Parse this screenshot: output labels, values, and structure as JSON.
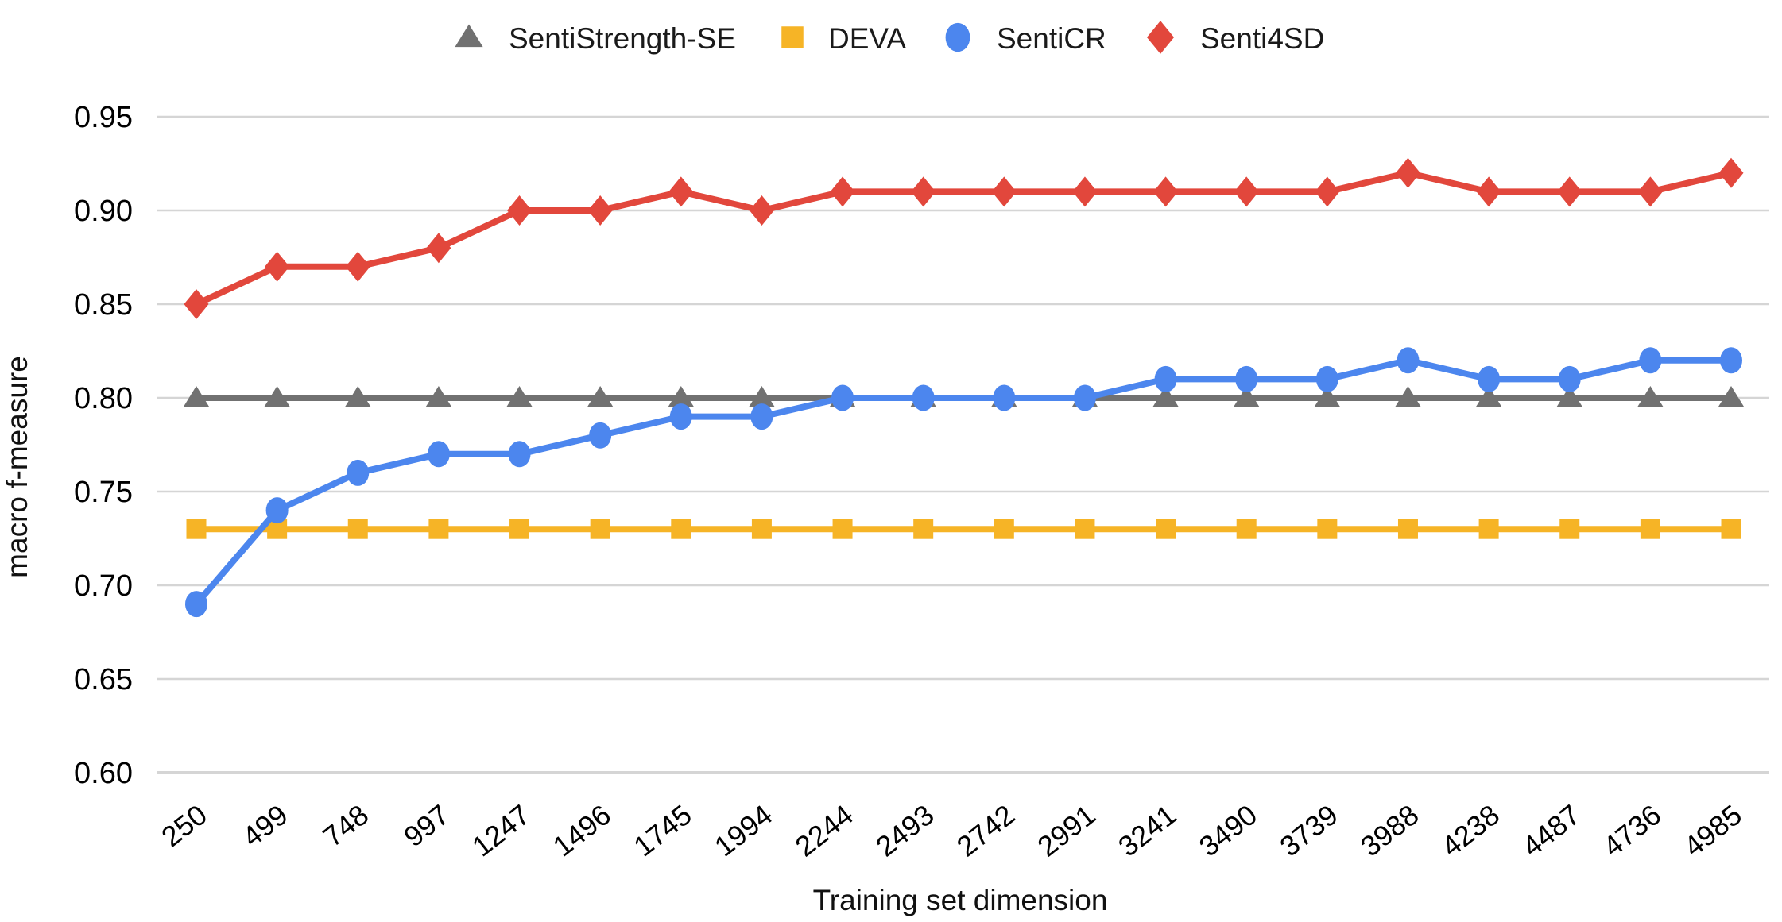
{
  "chart_data": {
    "type": "line",
    "title": "",
    "xlabel": "Training set dimension",
    "ylabel": "macro f-measure",
    "grid": true,
    "legend_position": "top-center",
    "ylim": [
      0.6,
      0.97
    ],
    "y_ticks": [
      0.95,
      0.9,
      0.85,
      0.8,
      0.75,
      0.7,
      0.65,
      0.6
    ],
    "categories": [
      250,
      499,
      748,
      997,
      1247,
      1496,
      1745,
      1994,
      2244,
      2493,
      2742,
      2991,
      3241,
      3490,
      3739,
      3988,
      4238,
      4487,
      4736,
      4985
    ],
    "series": [
      {
        "name": "SentiStrength-SE",
        "marker": "triangle",
        "color": "#717171",
        "values": [
          0.8,
          0.8,
          0.8,
          0.8,
          0.8,
          0.8,
          0.8,
          0.8,
          0.8,
          0.8,
          0.8,
          0.8,
          0.8,
          0.8,
          0.8,
          0.8,
          0.8,
          0.8,
          0.8,
          0.8
        ]
      },
      {
        "name": "DEVA",
        "marker": "square",
        "color": "#F6B426",
        "values": [
          0.73,
          0.73,
          0.73,
          0.73,
          0.73,
          0.73,
          0.73,
          0.73,
          0.73,
          0.73,
          0.73,
          0.73,
          0.73,
          0.73,
          0.73,
          0.73,
          0.73,
          0.73,
          0.73,
          0.73
        ]
      },
      {
        "name": "SentiCR",
        "marker": "circle",
        "color": "#4C86EE",
        "values": [
          0.69,
          0.74,
          0.76,
          0.77,
          0.77,
          0.78,
          0.79,
          0.79,
          0.8,
          0.8,
          0.8,
          0.8,
          0.81,
          0.81,
          0.81,
          0.82,
          0.81,
          0.81,
          0.82,
          0.82
        ]
      },
      {
        "name": "Senti4SD",
        "marker": "diamond",
        "color": "#E2473C",
        "values": [
          0.85,
          0.87,
          0.87,
          0.88,
          0.9,
          0.9,
          0.91,
          0.9,
          0.91,
          0.91,
          0.91,
          0.91,
          0.91,
          0.91,
          0.91,
          0.92,
          0.91,
          0.91,
          0.91,
          0.92
        ]
      }
    ],
    "colors": {
      "gridline": "#D5D5D5",
      "tick_text": "#000000",
      "legend_text": "#1A1A1A"
    }
  }
}
